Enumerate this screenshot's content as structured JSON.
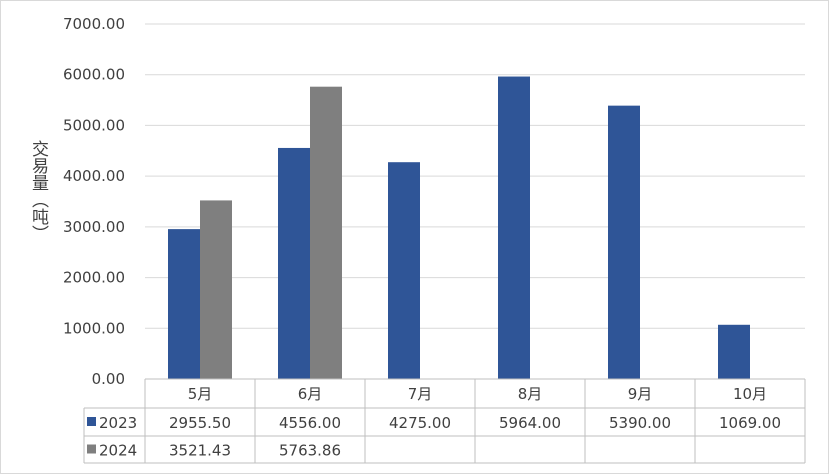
{
  "chart_data": {
    "type": "bar",
    "title": "",
    "xlabel": "",
    "ylabel": "交易量（吨）",
    "ylim": [
      0,
      7000
    ],
    "y_ticks": [
      "0.00",
      "1000.00",
      "2000.00",
      "3000.00",
      "4000.00",
      "5000.00",
      "6000.00",
      "7000.00"
    ],
    "grid": true,
    "legend": "data-table",
    "categories": [
      "5月",
      "6月",
      "7月",
      "8月",
      "9月",
      "10月"
    ],
    "series": [
      {
        "name": "2023",
        "color": "#2F5597",
        "values": [
          2955.5,
          4556.0,
          4275.0,
          5964.0,
          5390.0,
          1069.0
        ],
        "labels": [
          "2955.50",
          "4556.00",
          "4275.00",
          "5964.00",
          "5390.00",
          "1069.00"
        ]
      },
      {
        "name": "2024",
        "color": "#7F7F7F",
        "values": [
          3521.43,
          5763.86,
          null,
          null,
          null,
          null
        ],
        "labels": [
          "3521.43",
          "5763.86",
          "",
          "",
          "",
          ""
        ]
      }
    ]
  }
}
